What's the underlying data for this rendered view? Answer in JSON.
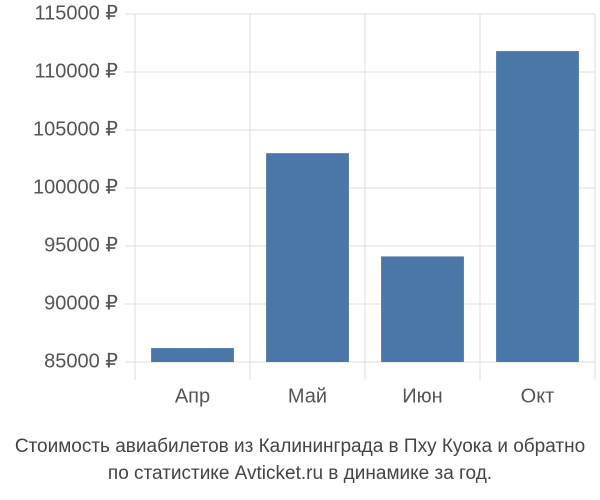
{
  "chart_data": {
    "type": "bar",
    "title": "Стоимость авиабилетов из Калининграда в Пху Куока и обратно",
    "subtitle": "по статистике Avticket.ru в динамике за год.",
    "categories": [
      "Апр",
      "Май",
      "Июн",
      "Окт"
    ],
    "values": [
      86200,
      103000,
      94100,
      111800
    ],
    "color": "#4a76a8",
    "ylim": [
      85000,
      115000
    ],
    "yticks": [
      {
        "value": 85000,
        "label": "85000 ₽"
      },
      {
        "value": 90000,
        "label": "90000 ₽"
      },
      {
        "value": 95000,
        "label": "95000 ₽"
      },
      {
        "value": 100000,
        "label": "100000 ₽"
      },
      {
        "value": 105000,
        "label": "105000 ₽"
      },
      {
        "value": 110000,
        "label": "110000 ₽"
      },
      {
        "value": 115000,
        "label": "115000 ₽"
      }
    ],
    "grid": true
  }
}
